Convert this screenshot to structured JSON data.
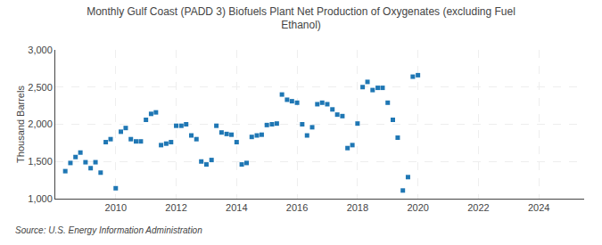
{
  "chart_data": {
    "type": "scatter",
    "title": "Monthly Gulf Coast (PADD 3) Biofuels Plant Net Production of Oxygenates (excluding Fuel\nEthanol)",
    "y_label": "Thousand Barrels",
    "annotations": [
      "Source: U.S. Energy Information Administration"
    ],
    "marker": "square",
    "grid": true,
    "xlim": [
      2008.0,
      2025.5
    ],
    "ylim": [
      1000,
      3000
    ],
    "xticks": [
      2010,
      2012,
      2014,
      2016,
      2018,
      2020,
      2022,
      2024
    ],
    "yticks": [
      {
        "value": 1000,
        "label": "1,000"
      },
      {
        "value": 1500,
        "label": "1,500"
      },
      {
        "value": 2000,
        "label": "2,000"
      },
      {
        "value": 2500,
        "label": "2,500"
      },
      {
        "value": 3000,
        "label": "3,000"
      }
    ],
    "x": [
      2008.33,
      2008.5,
      2008.67,
      2008.83,
      2009.0,
      2009.17,
      2009.33,
      2009.5,
      2009.67,
      2009.83,
      2010.0,
      2010.17,
      2010.33,
      2010.5,
      2010.67,
      2010.83,
      2011.0,
      2011.17,
      2011.33,
      2011.5,
      2011.67,
      2011.83,
      2012.0,
      2012.17,
      2012.33,
      2012.5,
      2012.67,
      2012.83,
      2013.0,
      2013.17,
      2013.33,
      2013.5,
      2013.67,
      2013.83,
      2014.0,
      2014.17,
      2014.33,
      2014.5,
      2014.67,
      2014.83,
      2015.0,
      2015.17,
      2015.33,
      2015.5,
      2015.67,
      2015.83,
      2016.0,
      2016.17,
      2016.33,
      2016.5,
      2016.67,
      2016.83,
      2017.0,
      2017.17,
      2017.33,
      2017.5,
      2017.67,
      2017.83,
      2018.0,
      2018.17,
      2018.33,
      2018.5,
      2018.67,
      2018.83,
      2019.0,
      2019.17,
      2019.33,
      2019.5,
      2019.67,
      2019.83,
      2020.0
    ],
    "values": [
      1370,
      1480,
      1560,
      1620,
      1490,
      1410,
      1490,
      1350,
      1760,
      1800,
      1140,
      1900,
      1950,
      1800,
      1770,
      1770,
      2060,
      2140,
      2160,
      1720,
      1740,
      1760,
      1980,
      1980,
      2000,
      1850,
      1800,
      1500,
      1460,
      1520,
      1980,
      1890,
      1870,
      1860,
      1760,
      1460,
      1480,
      1830,
      1850,
      1860,
      1990,
      2000,
      2010,
      2400,
      2330,
      2310,
      2290,
      2000,
      1850,
      1960,
      2270,
      2290,
      2270,
      2200,
      2130,
      2110,
      1680,
      1720,
      2010,
      2500,
      2570,
      2460,
      2490,
      2490,
      2290,
      2060,
      1820,
      1110,
      1290,
      2640,
      2660
    ]
  }
}
